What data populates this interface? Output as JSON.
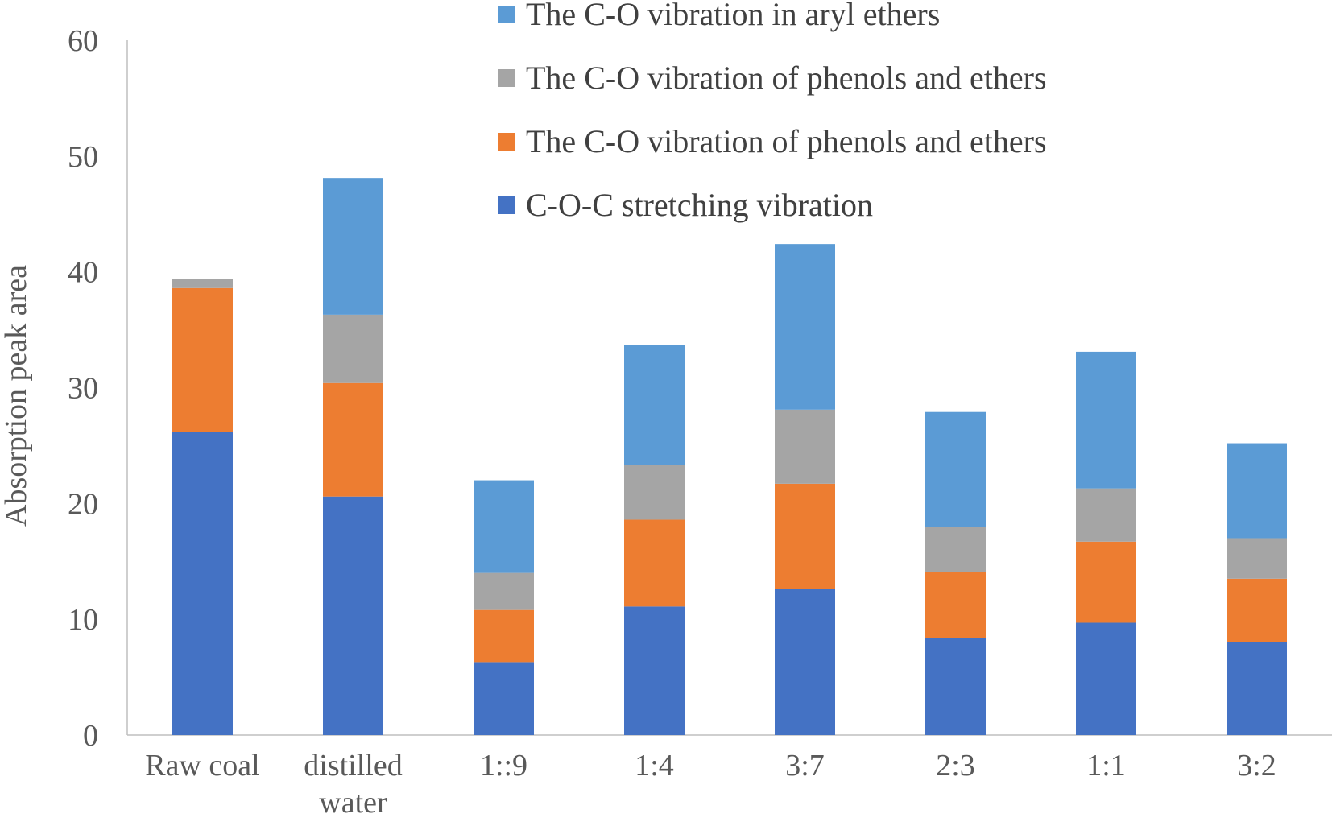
{
  "chart_data": {
    "type": "bar",
    "stacked": true,
    "title": "",
    "xlabel": "",
    "ylabel": "Absorption peak area",
    "ylim": [
      0,
      60
    ],
    "yticks": [
      0,
      10,
      20,
      30,
      40,
      50,
      60
    ],
    "grid": false,
    "legend_position": "top-right",
    "categories": [
      [
        "Raw coal"
      ],
      [
        "distilled",
        "water"
      ],
      [
        "1::9"
      ],
      [
        "1:4"
      ],
      [
        "3:7"
      ],
      [
        "2:3"
      ],
      [
        "1:1"
      ],
      [
        "3:2"
      ]
    ],
    "series": [
      {
        "name": "C-O-C stretching vibration",
        "color": "#4472C4",
        "values": [
          26.2,
          20.6,
          6.3,
          11.1,
          12.6,
          8.4,
          9.7,
          8.0
        ]
      },
      {
        "name": "The C-O vibration of phenols and ethers",
        "color": "#ED7D31",
        "values": [
          12.4,
          9.8,
          4.5,
          7.5,
          9.1,
          5.7,
          7.0,
          5.5
        ]
      },
      {
        "name": "The C-O vibration of phenols and ethers",
        "color": "#A5A5A5",
        "values": [
          0.8,
          5.9,
          3.2,
          4.7,
          6.4,
          3.9,
          4.6,
          3.5
        ]
      },
      {
        "name": "The C-O vibration in aryl ethers",
        "color": "#5B9BD5",
        "values": [
          0,
          11.8,
          8.0,
          10.4,
          14.3,
          9.9,
          11.8,
          8.2
        ]
      }
    ],
    "legend_order": [
      3,
      2,
      1,
      0
    ]
  }
}
